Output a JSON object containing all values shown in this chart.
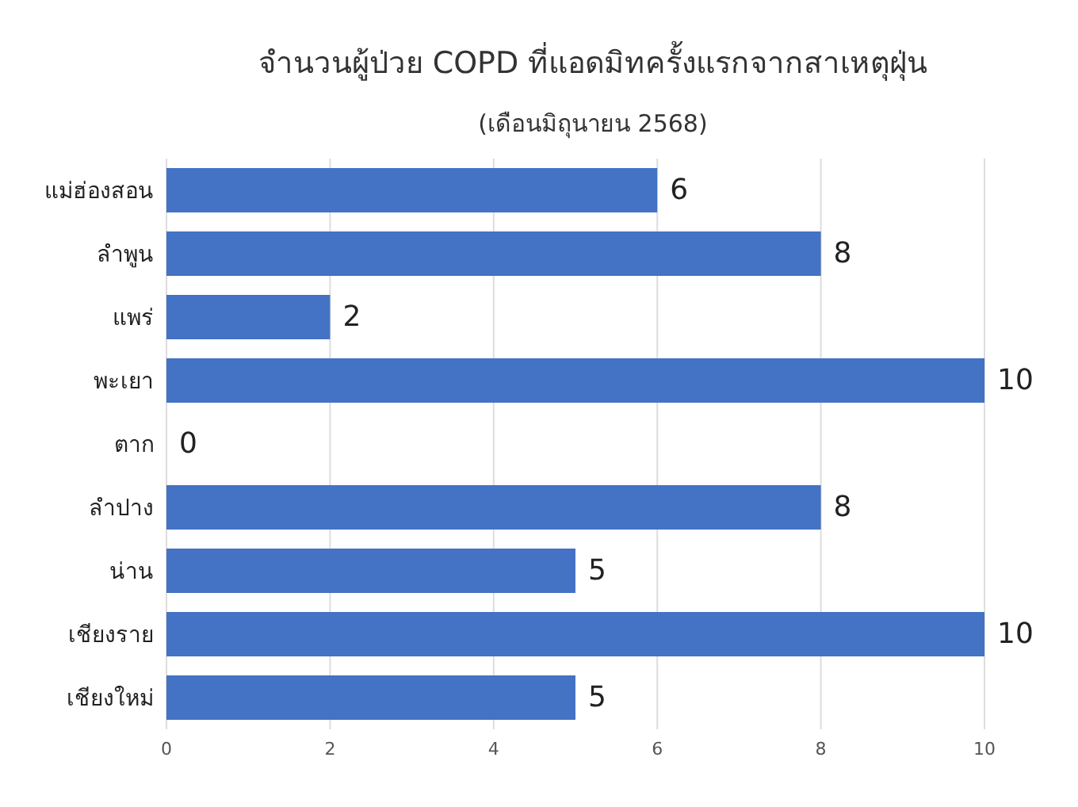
{
  "chart_data": {
    "type": "bar",
    "orientation": "horizontal",
    "title": "จำนวนผู้ป่วย COPD ที่แอดมิทครั้งแรกจากสาเหตุฝุ่น",
    "subtitle": "(เดือนมิถุนายน 2568)",
    "categories": [
      "แม่ฮ่องสอน",
      "ลำพูน",
      "แพร่",
      "พะเยา",
      "ตาก",
      "ลำปาง",
      "น่าน",
      "เชียงราย",
      "เชียงใหม่"
    ],
    "values": [
      6,
      8,
      2,
      10,
      0,
      8,
      5,
      10,
      5
    ],
    "color": "#4472c4",
    "xlim": [
      0,
      10
    ],
    "xticks": [
      0,
      2,
      4,
      6,
      8,
      10
    ],
    "grid": "x",
    "data_labels": true
  }
}
